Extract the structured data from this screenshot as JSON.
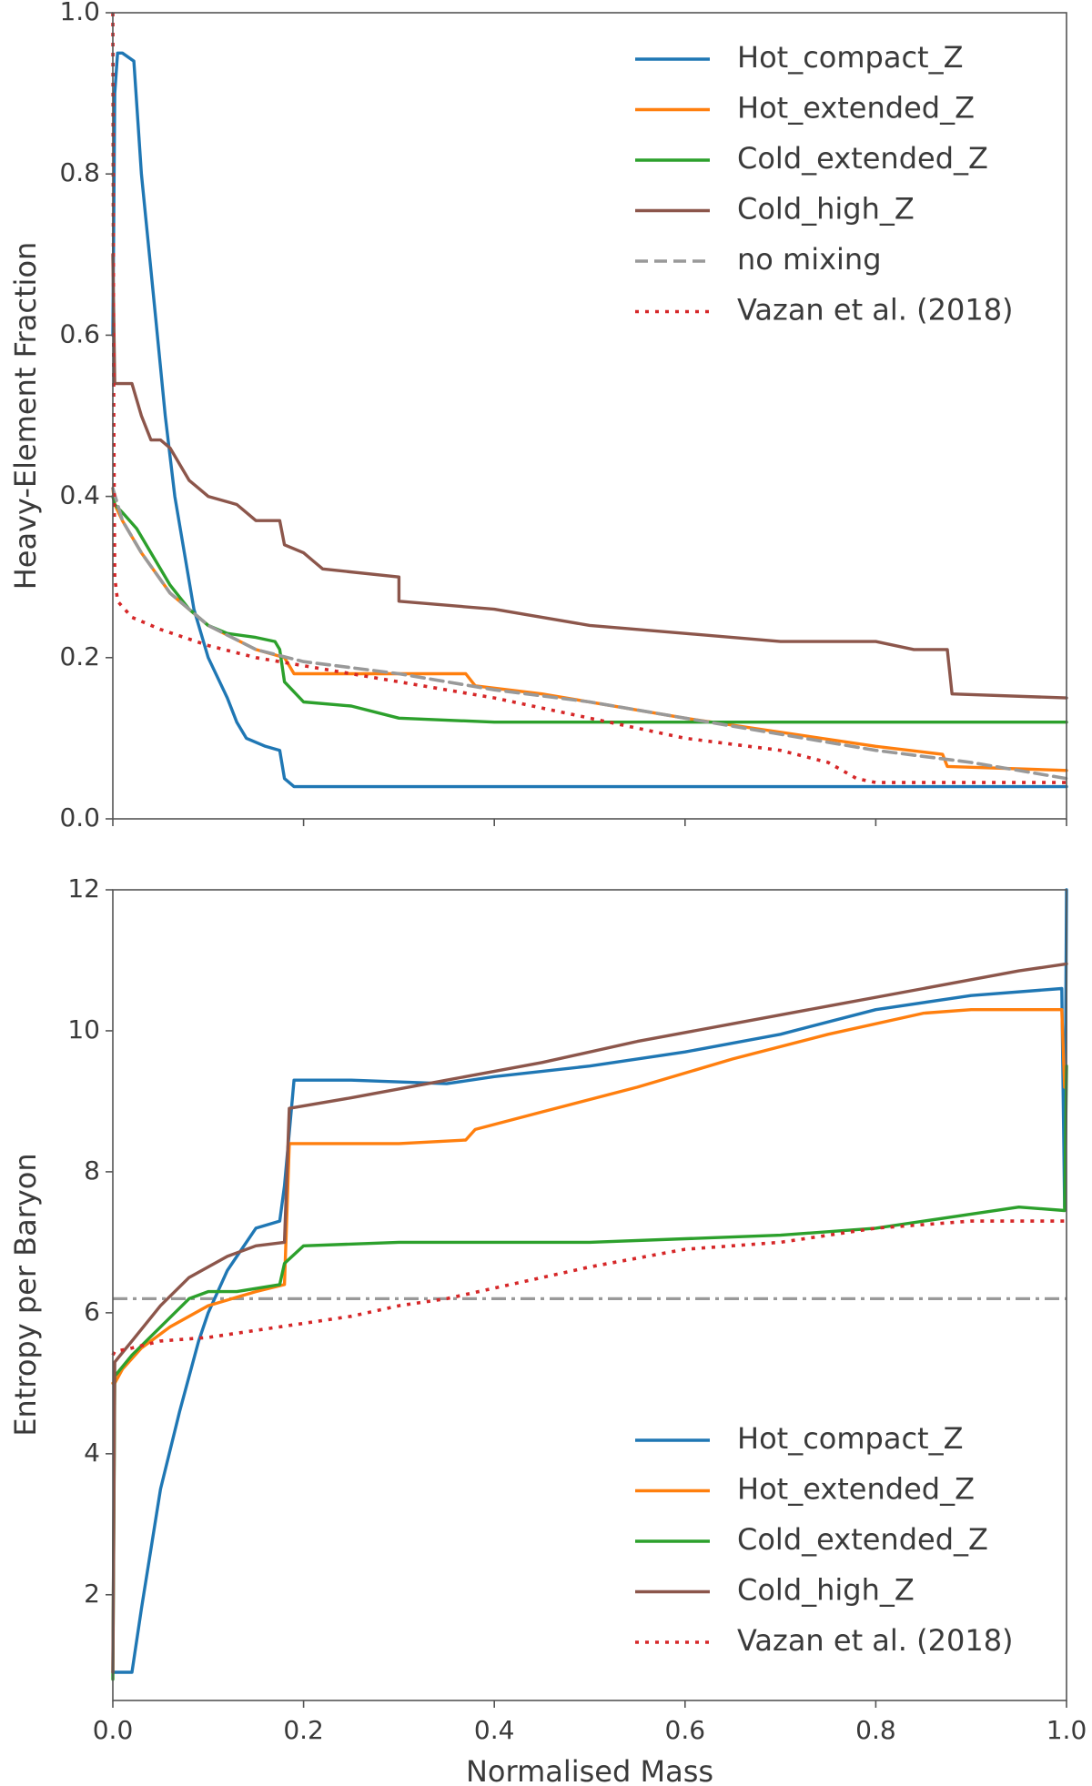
{
  "chart_data": [
    {
      "type": "line",
      "title": "",
      "xlabel": "",
      "ylabel": "Heavy-Element Fraction",
      "xlim": [
        0.0,
        1.0
      ],
      "ylim": [
        0.0,
        1.0
      ],
      "xticks": [
        0.0,
        0.2,
        0.4,
        0.6,
        0.8,
        1.0
      ],
      "yticks": [
        0.0,
        0.2,
        0.4,
        0.6,
        0.8,
        1.0
      ],
      "xtick_labels": [],
      "ytick_labels": [
        "0.0",
        "0.2",
        "0.4",
        "0.6",
        "0.8",
        "1.0"
      ],
      "legend_position": "top-right",
      "grid": false,
      "series": [
        {
          "name": "Hot_compact_Z",
          "color": "#1f77b4",
          "style": "solid",
          "x": [
            0.0,
            0.002,
            0.005,
            0.01,
            0.022,
            0.03,
            0.045,
            0.055,
            0.065,
            0.075,
            0.085,
            0.1,
            0.12,
            0.13,
            0.14,
            0.16,
            0.175,
            0.18,
            0.19,
            0.25,
            0.4,
            0.6,
            0.8,
            1.0
          ],
          "values": [
            0.6,
            0.9,
            0.95,
            0.95,
            0.94,
            0.8,
            0.62,
            0.5,
            0.4,
            0.33,
            0.26,
            0.2,
            0.15,
            0.12,
            0.1,
            0.09,
            0.085,
            0.05,
            0.04,
            0.04,
            0.04,
            0.04,
            0.04,
            0.04
          ]
        },
        {
          "name": "Hot_extended_Z",
          "color": "#ff7f0e",
          "style": "solid",
          "x": [
            0.0,
            0.002,
            0.01,
            0.03,
            0.06,
            0.1,
            0.15,
            0.18,
            0.19,
            0.3,
            0.37,
            0.38,
            0.45,
            0.6,
            0.8,
            0.87,
            0.875,
            1.0
          ],
          "values": [
            0.41,
            0.39,
            0.37,
            0.33,
            0.28,
            0.24,
            0.21,
            0.2,
            0.18,
            0.18,
            0.18,
            0.165,
            0.155,
            0.125,
            0.09,
            0.08,
            0.065,
            0.06
          ]
        },
        {
          "name": "Cold_extended_Z",
          "color": "#2ca02c",
          "style": "solid",
          "x": [
            0.0,
            0.002,
            0.01,
            0.025,
            0.04,
            0.06,
            0.08,
            0.1,
            0.12,
            0.15,
            0.17,
            0.175,
            0.18,
            0.2,
            0.25,
            0.3,
            0.4,
            0.6,
            0.8,
            1.0
          ],
          "values": [
            0.4,
            0.39,
            0.38,
            0.36,
            0.33,
            0.29,
            0.26,
            0.24,
            0.23,
            0.225,
            0.22,
            0.21,
            0.17,
            0.145,
            0.14,
            0.125,
            0.12,
            0.12,
            0.12,
            0.12
          ]
        },
        {
          "name": "Cold_high_Z",
          "color": "#8c564b",
          "style": "solid",
          "x": [
            0.0,
            0.002,
            0.01,
            0.02,
            0.025,
            0.03,
            0.04,
            0.05,
            0.06,
            0.07,
            0.08,
            0.09,
            0.1,
            0.13,
            0.14,
            0.15,
            0.16,
            0.175,
            0.18,
            0.2,
            0.21,
            0.22,
            0.3,
            0.3,
            0.4,
            0.5,
            0.6,
            0.7,
            0.8,
            0.84,
            0.875,
            0.88,
            1.0
          ],
          "values": [
            0.7,
            0.54,
            0.54,
            0.54,
            0.52,
            0.5,
            0.47,
            0.47,
            0.46,
            0.44,
            0.42,
            0.41,
            0.4,
            0.39,
            0.38,
            0.37,
            0.37,
            0.37,
            0.34,
            0.33,
            0.32,
            0.31,
            0.3,
            0.27,
            0.26,
            0.24,
            0.23,
            0.22,
            0.22,
            0.21,
            0.21,
            0.155,
            0.15
          ]
        },
        {
          "name": "no mixing",
          "color": "#999999",
          "style": "dashed",
          "x": [
            0.0,
            0.01,
            0.03,
            0.06,
            0.1,
            0.15,
            0.2,
            0.3,
            0.4,
            0.5,
            0.6,
            0.7,
            0.8,
            0.9,
            1.0
          ],
          "values": [
            0.41,
            0.37,
            0.33,
            0.28,
            0.24,
            0.21,
            0.195,
            0.18,
            0.16,
            0.145,
            0.125,
            0.105,
            0.085,
            0.07,
            0.05
          ]
        },
        {
          "name": "Vazan et al. (2018)",
          "color": "#d62728",
          "style": "dotted",
          "x": [
            0.0,
            0.001,
            0.002,
            0.005,
            0.02,
            0.05,
            0.1,
            0.15,
            0.2,
            0.3,
            0.4,
            0.5,
            0.6,
            0.7,
            0.75,
            0.78,
            0.8,
            0.9,
            1.0
          ],
          "values": [
            1.0,
            0.5,
            0.3,
            0.27,
            0.25,
            0.235,
            0.215,
            0.2,
            0.19,
            0.17,
            0.15,
            0.125,
            0.1,
            0.085,
            0.07,
            0.05,
            0.045,
            0.045,
            0.045
          ]
        }
      ],
      "legend": [
        "Hot_compact_Z",
        "Hot_extended_Z",
        "Cold_extended_Z",
        "Cold_high_Z",
        "no mixing",
        "Vazan et al. (2018)"
      ]
    },
    {
      "type": "line",
      "title": "",
      "xlabel": "Normalised Mass",
      "ylabel": "Entropy per Baryon",
      "xlim": [
        0.0,
        1.0
      ],
      "ylim": [
        0.5,
        12.0
      ],
      "xticks": [
        0.0,
        0.2,
        0.4,
        0.6,
        0.8,
        1.0
      ],
      "yticks": [
        2,
        4,
        6,
        8,
        10,
        12
      ],
      "xtick_labels": [
        "0.0",
        "0.2",
        "0.4",
        "0.6",
        "0.8",
        "1.0"
      ],
      "ytick_labels": [
        "2",
        "4",
        "6",
        "8",
        "10",
        "12"
      ],
      "reference_line": {
        "y": 6.2,
        "style": "dashdot",
        "color": "#999999"
      },
      "legend_position": "bottom-right",
      "grid": false,
      "series": [
        {
          "name": "Hot_compact_Z",
          "color": "#1f77b4",
          "style": "solid",
          "x": [
            0.0,
            0.005,
            0.02,
            0.03,
            0.05,
            0.07,
            0.09,
            0.1,
            0.12,
            0.15,
            0.175,
            0.18,
            0.19,
            0.25,
            0.35,
            0.4,
            0.5,
            0.6,
            0.7,
            0.8,
            0.9,
            0.995,
            0.998,
            1.0
          ],
          "values": [
            0.9,
            0.9,
            0.9,
            1.8,
            3.5,
            4.6,
            5.6,
            6.0,
            6.6,
            7.2,
            7.3,
            7.8,
            9.3,
            9.3,
            9.25,
            9.35,
            9.5,
            9.7,
            9.95,
            10.3,
            10.5,
            10.6,
            7.5,
            12.0
          ]
        },
        {
          "name": "Hot_extended_Z",
          "color": "#ff7f0e",
          "style": "solid",
          "x": [
            0.0,
            0.002,
            0.01,
            0.03,
            0.06,
            0.1,
            0.15,
            0.18,
            0.185,
            0.2,
            0.3,
            0.37,
            0.38,
            0.45,
            0.55,
            0.65,
            0.75,
            0.85,
            0.9,
            0.995,
            0.998
          ],
          "values": [
            5.0,
            5.0,
            5.2,
            5.5,
            5.8,
            6.1,
            6.3,
            6.4,
            8.4,
            8.4,
            8.4,
            8.45,
            8.6,
            8.85,
            9.2,
            9.6,
            9.95,
            10.25,
            10.3,
            10.3,
            9.2
          ]
        },
        {
          "name": "Cold_extended_Z",
          "color": "#2ca02c",
          "style": "solid",
          "x": [
            0.0,
            0.002,
            0.02,
            0.05,
            0.08,
            0.1,
            0.13,
            0.175,
            0.18,
            0.2,
            0.3,
            0.4,
            0.5,
            0.6,
            0.7,
            0.8,
            0.9,
            0.95,
            0.998,
            1.0
          ],
          "values": [
            0.8,
            5.1,
            5.4,
            5.8,
            6.2,
            6.3,
            6.3,
            6.4,
            6.7,
            6.95,
            7.0,
            7.0,
            7.0,
            7.05,
            7.1,
            7.2,
            7.4,
            7.5,
            7.45,
            9.5
          ]
        },
        {
          "name": "Cold_high_Z",
          "color": "#8c564b",
          "style": "solid",
          "x": [
            0.0,
            0.002,
            0.02,
            0.05,
            0.08,
            0.12,
            0.15,
            0.18,
            0.185,
            0.25,
            0.35,
            0.45,
            0.55,
            0.65,
            0.75,
            0.85,
            0.95,
            1.0
          ],
          "values": [
            0.9,
            5.3,
            5.6,
            6.1,
            6.5,
            6.8,
            6.95,
            7.0,
            8.9,
            9.05,
            9.3,
            9.55,
            9.85,
            10.1,
            10.35,
            10.6,
            10.85,
            10.95
          ]
        },
        {
          "name": "Vazan et al. (2018)",
          "color": "#d62728",
          "style": "dotted",
          "x": [
            0.0,
            0.002,
            0.02,
            0.05,
            0.1,
            0.15,
            0.2,
            0.25,
            0.3,
            0.35,
            0.4,
            0.5,
            0.6,
            0.7,
            0.8,
            0.9,
            1.0
          ],
          "values": [
            5.4,
            5.45,
            5.5,
            5.6,
            5.65,
            5.75,
            5.85,
            5.95,
            6.1,
            6.2,
            6.35,
            6.65,
            6.9,
            7.0,
            7.2,
            7.3,
            7.3
          ]
        }
      ],
      "legend": [
        "Hot_compact_Z",
        "Hot_extended_Z",
        "Cold_extended_Z",
        "Cold_high_Z",
        "Vazan et al. (2018)"
      ]
    }
  ]
}
